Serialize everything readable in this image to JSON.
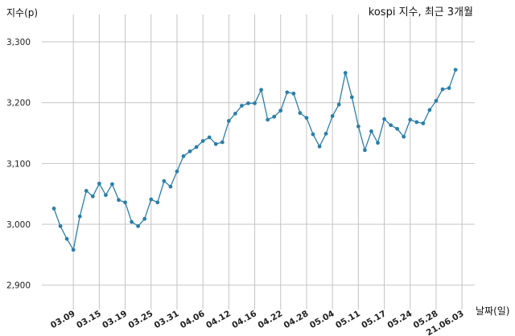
{
  "chart_data": {
    "type": "line",
    "title": "kospi 지수, 최근 3개월",
    "ylabel": "지수(p)",
    "xlabel": "날짜(일)",
    "ylim": [
      2860,
      3345
    ],
    "yticks": [
      2900,
      3000,
      3100,
      3200,
      3300
    ],
    "ytick_labels": [
      "2,900",
      "3,000",
      "3,100",
      "3,200",
      "3,300"
    ],
    "xtick_labels": [
      "03.09",
      "03.15",
      "03.19",
      "03.25",
      "03.31",
      "04.06",
      "04.12",
      "04.16",
      "04.22",
      "04.28",
      "05.04",
      "05.11",
      "05.17",
      "05.24",
      "05.28",
      "21.06.03"
    ],
    "xtick_positions": [
      3,
      7,
      11,
      15,
      19,
      23,
      27,
      31,
      35,
      39,
      43,
      47,
      51,
      55,
      59,
      63
    ],
    "grid": true,
    "line_color": "#2b7fa8",
    "values": [
      3026,
      2997,
      2976,
      2958,
      3013,
      3055,
      3046,
      3067,
      3048,
      3066,
      3040,
      3036,
      3004,
      2997,
      3009,
      3041,
      3036,
      3071,
      3062,
      3087,
      3112,
      3120,
      3127,
      3137,
      3143,
      3132,
      3135,
      3170,
      3182,
      3195,
      3199,
      3199,
      3221,
      3172,
      3177,
      3187,
      3217,
      3215,
      3183,
      3175,
      3148,
      3128,
      3149,
      3178,
      3197,
      3249,
      3209,
      3161,
      3122,
      3153,
      3134,
      3173,
      3163,
      3157,
      3144,
      3172,
      3168,
      3166,
      3188,
      3203,
      3222,
      3224,
      3254
    ]
  }
}
